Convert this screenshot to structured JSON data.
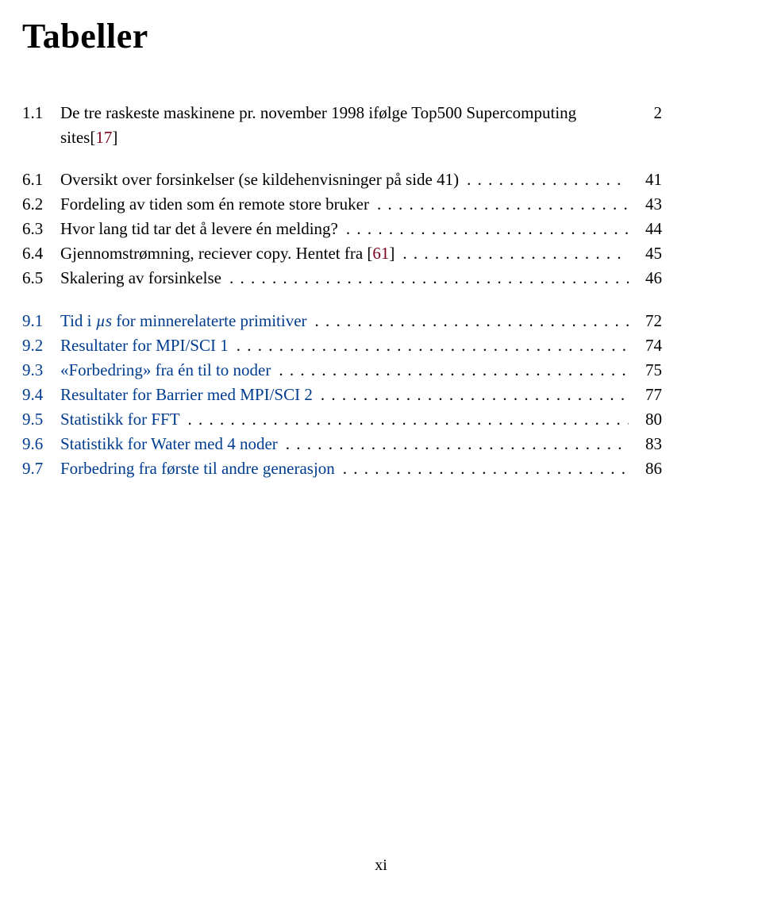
{
  "heading": "Tabeller",
  "colors": {
    "text": "#000000",
    "ref_red": "#7a0019",
    "ref_blue": "#003c8f",
    "background": "#ffffff"
  },
  "page_label": "xi",
  "groups": [
    {
      "entries": [
        {
          "num": "1.1",
          "title": "De tre raskeste maskinene pr. november 1998 ifølge Top500 Supercomputing sites[",
          "ref": "17",
          "after_ref": "]",
          "page": "2",
          "multiline": true
        }
      ]
    },
    {
      "entries": [
        {
          "num": "6.1",
          "title": "Oversikt over forsinkelser (se kildehenvisninger på side 41)",
          "page": "41"
        },
        {
          "num": "6.2",
          "title": "Fordeling av tiden som én remote store bruker",
          "page": "43"
        },
        {
          "num": "6.3",
          "title": "Hvor lang tid tar det å levere én melding?",
          "page": "44"
        },
        {
          "num": "6.4",
          "title_prefix": "Gjennomstrømning, reciever copy. Hentet fra [",
          "ref": "61",
          "title_suffix": "]",
          "page": "45"
        },
        {
          "num": "6.5",
          "title": "Skalering av forsinkelse",
          "page": "46"
        }
      ]
    },
    {
      "entries": [
        {
          "num": "9.1",
          "title_prefix": "Tid i ",
          "title_italic": "µs",
          "title_suffix": " for minnerelaterte primitiver",
          "page": "72",
          "link_blue": true
        },
        {
          "num": "9.2",
          "title": "Resultater for MPI/SCI 1",
          "page": "74",
          "link_blue": true
        },
        {
          "num": "9.3",
          "title": "«Forbedring» fra én til to noder",
          "page": "75",
          "link_blue": true
        },
        {
          "num": "9.4",
          "title": "Resultater for Barrier med MPI/SCI 2",
          "page": "77",
          "link_blue": true
        },
        {
          "num": "9.5",
          "title": "Statistikk for FFT",
          "page": "80",
          "link_blue": true
        },
        {
          "num": "9.6",
          "title": "Statistikk for Water med 4 noder",
          "page": "83",
          "link_blue": true
        },
        {
          "num": "9.7",
          "title": "Forbedring fra første til andre generasjon",
          "page": "86",
          "link_blue": true
        }
      ]
    }
  ]
}
